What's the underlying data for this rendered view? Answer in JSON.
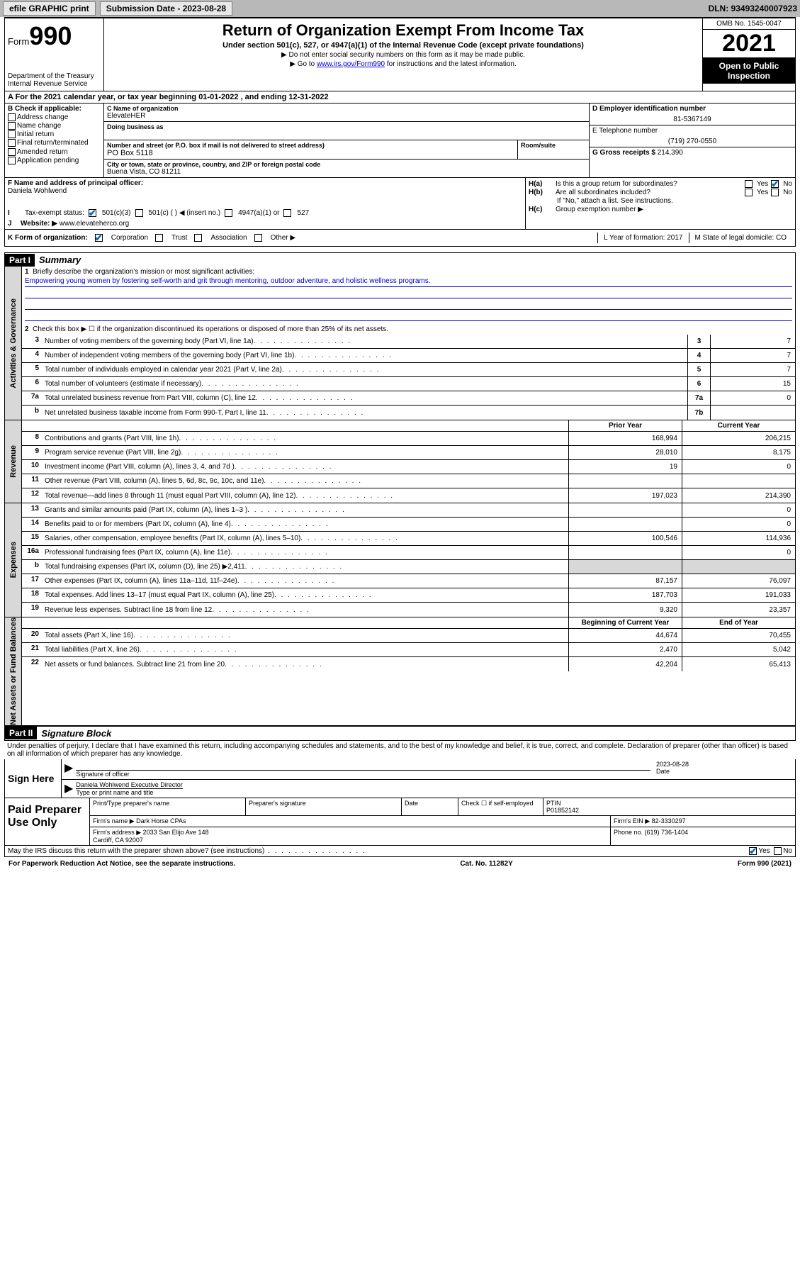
{
  "topbar": {
    "efile": "efile GRAPHIC print",
    "submission": "Submission Date - 2023-08-28",
    "dln": "DLN: 93493240007923"
  },
  "header": {
    "form_label": "Form",
    "form_num": "990",
    "dept": "Department of the Treasury\nInternal Revenue Service",
    "title": "Return of Organization Exempt From Income Tax",
    "subtitle": "Under section 501(c), 527, or 4947(a)(1) of the Internal Revenue Code (except private foundations)",
    "instr1": "▶ Do not enter social security numbers on this form as it may be made public.",
    "instr2_pre": "▶ Go to ",
    "instr2_link": "www.irs.gov/Form990",
    "instr2_post": " for instructions and the latest information.",
    "omb": "OMB No. 1545-0047",
    "year": "2021",
    "inspect": "Open to Public Inspection"
  },
  "row_a": "A For the 2021 calendar year, or tax year beginning 01-01-2022   , and ending 12-31-2022",
  "box_b": {
    "label": "B Check if applicable:",
    "items": [
      "Address change",
      "Name change",
      "Initial return",
      "Final return/terminated",
      "Amended return",
      "Application pending"
    ]
  },
  "box_c": {
    "name_lbl": "C Name of organization",
    "name": "ElevateHER",
    "dba_lbl": "Doing business as",
    "addr_lbl": "Number and street (or P.O. box if mail is not delivered to street address)",
    "room_lbl": "Room/suite",
    "addr": "PO Box 5118",
    "city_lbl": "City or town, state or province, country, and ZIP or foreign postal code",
    "city": "Buena Vista, CO  81211"
  },
  "box_d": {
    "lbl": "D Employer identification number",
    "val": "81-5367149"
  },
  "box_e": {
    "lbl": "E Telephone number",
    "val": "(719) 270-0550"
  },
  "box_g": {
    "lbl": "G Gross receipts $",
    "val": "214,390"
  },
  "box_f": {
    "lbl": "F Name and address of principal officer:",
    "val": "Daniela Wohlwend"
  },
  "box_h": {
    "ha": "Is this a group return for subordinates?",
    "hb": "Are all subordinates included?",
    "hb_note": "If \"No,\" attach a list. See instructions.",
    "hc": "Group exemption number ▶"
  },
  "row_i": {
    "lbl": "Tax-exempt status:",
    "opts": [
      "501(c)(3)",
      "501(c) (  ) ◀ (insert no.)",
      "4947(a)(1) or",
      "527"
    ]
  },
  "row_j": {
    "lbl": "Website: ▶",
    "val": "www.elevateherco.org"
  },
  "row_k": {
    "lbl": "K Form of organization:",
    "opts": [
      "Corporation",
      "Trust",
      "Association",
      "Other ▶"
    ],
    "l": "L Year of formation: 2017",
    "m": "M State of legal domicile: CO"
  },
  "part1": {
    "hdr": "Part I",
    "title": "Summary"
  },
  "gov": {
    "tab": "Activities & Governance",
    "l1": "Briefly describe the organization's mission or most significant activities:",
    "mission": "Empowering young women by fostering self-worth and grit through mentoring, outdoor adventure, and holistic wellness programs.",
    "l2": "Check this box ▶ ☐  if the organization discontinued its operations or disposed of more than 25% of its net assets.",
    "lines": [
      {
        "n": "3",
        "d": "Number of voting members of the governing body (Part VI, line 1a)",
        "b": "3",
        "v": "7"
      },
      {
        "n": "4",
        "d": "Number of independent voting members of the governing body (Part VI, line 1b)",
        "b": "4",
        "v": "7"
      },
      {
        "n": "5",
        "d": "Total number of individuals employed in calendar year 2021 (Part V, line 2a)",
        "b": "5",
        "v": "7"
      },
      {
        "n": "6",
        "d": "Total number of volunteers (estimate if necessary)",
        "b": "6",
        "v": "15"
      },
      {
        "n": "7a",
        "d": "Total unrelated business revenue from Part VIII, column (C), line 12",
        "b": "7a",
        "v": "0"
      },
      {
        "n": "b",
        "d": "Net unrelated business taxable income from Form 990-T, Part I, line 11",
        "b": "7b",
        "v": ""
      }
    ]
  },
  "rev": {
    "tab": "Revenue",
    "hdr_prior": "Prior Year",
    "hdr_curr": "Current Year",
    "lines": [
      {
        "n": "8",
        "d": "Contributions and grants (Part VIII, line 1h)",
        "p": "168,994",
        "c": "206,215"
      },
      {
        "n": "9",
        "d": "Program service revenue (Part VIII, line 2g)",
        "p": "28,010",
        "c": "8,175"
      },
      {
        "n": "10",
        "d": "Investment income (Part VIII, column (A), lines 3, 4, and 7d )",
        "p": "19",
        "c": "0"
      },
      {
        "n": "11",
        "d": "Other revenue (Part VIII, column (A), lines 5, 6d, 8c, 9c, 10c, and 11e)",
        "p": "",
        "c": ""
      },
      {
        "n": "12",
        "d": "Total revenue—add lines 8 through 11 (must equal Part VIII, column (A), line 12)",
        "p": "197,023",
        "c": "214,390"
      }
    ]
  },
  "exp": {
    "tab": "Expenses",
    "lines": [
      {
        "n": "13",
        "d": "Grants and similar amounts paid (Part IX, column (A), lines 1–3 )",
        "p": "",
        "c": "0"
      },
      {
        "n": "14",
        "d": "Benefits paid to or for members (Part IX, column (A), line 4)",
        "p": "",
        "c": "0"
      },
      {
        "n": "15",
        "d": "Salaries, other compensation, employee benefits (Part IX, column (A), lines 5–10)",
        "p": "100,546",
        "c": "114,936"
      },
      {
        "n": "16a",
        "d": "Professional fundraising fees (Part IX, column (A), line 11e)",
        "p": "",
        "c": "0"
      },
      {
        "n": "b",
        "d": "Total fundraising expenses (Part IX, column (D), line 25) ▶2,411",
        "p": "grey",
        "c": "grey"
      },
      {
        "n": "17",
        "d": "Other expenses (Part IX, column (A), lines 11a–11d, 11f–24e)",
        "p": "87,157",
        "c": "76,097"
      },
      {
        "n": "18",
        "d": "Total expenses. Add lines 13–17 (must equal Part IX, column (A), line 25)",
        "p": "187,703",
        "c": "191,033"
      },
      {
        "n": "19",
        "d": "Revenue less expenses. Subtract line 18 from line 12",
        "p": "9,320",
        "c": "23,357"
      }
    ]
  },
  "na": {
    "tab": "Net Assets or Fund Balances",
    "hdr_beg": "Beginning of Current Year",
    "hdr_end": "End of Year",
    "lines": [
      {
        "n": "20",
        "d": "Total assets (Part X, line 16)",
        "p": "44,674",
        "c": "70,455"
      },
      {
        "n": "21",
        "d": "Total liabilities (Part X, line 26)",
        "p": "2,470",
        "c": "5,042"
      },
      {
        "n": "22",
        "d": "Net assets or fund balances. Subtract line 21 from line 20",
        "p": "42,204",
        "c": "65,413"
      }
    ]
  },
  "part2": {
    "hdr": "Part II",
    "title": "Signature Block"
  },
  "sig": {
    "decl": "Under penalties of perjury, I declare that I have examined this return, including accompanying schedules and statements, and to the best of my knowledge and belief, it is true, correct, and complete. Declaration of preparer (other than officer) is based on all information of which preparer has any knowledge.",
    "sign_here": "Sign Here",
    "officer_sig": "Signature of officer",
    "date": "2023-08-28",
    "date_lbl": "Date",
    "officer_name": "Daniela Wohlwend  Executive Director",
    "name_lbl": "Type or print name and title"
  },
  "prep": {
    "lbl": "Paid Preparer Use Only",
    "r1": {
      "a": "Print/Type preparer's name",
      "b": "Preparer's signature",
      "c": "Date",
      "d": "Check ☐ if self-employed",
      "e": "PTIN\nP01852142"
    },
    "r2": {
      "a": "Firm's name    ▶ Dark Horse CPAs",
      "b": "Firm's EIN ▶ 82-3330297"
    },
    "r3": {
      "a": "Firm's address ▶ 2033 San Elijo Ave 148\nCardiff, CA  92007",
      "b": "Phone no. (619) 736-1404"
    }
  },
  "bottom": "May the IRS discuss this return with the preparer shown above? (see instructions)",
  "footer": {
    "left": "For Paperwork Reduction Act Notice, see the separate instructions.",
    "mid": "Cat. No. 11282Y",
    "right": "Form 990 (2021)"
  },
  "colors": {
    "link": "#0000cc",
    "check": "#0060c0",
    "grey_bg": "#d8d8d8",
    "topbar_bg": "#b8b8b8"
  }
}
